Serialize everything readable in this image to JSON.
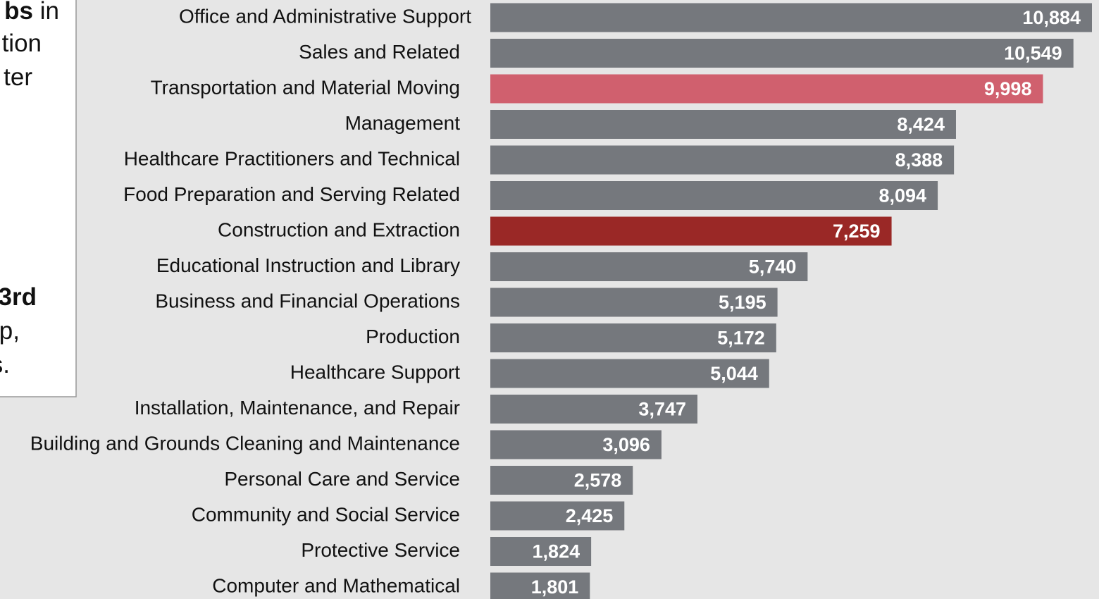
{
  "chart_data": {
    "type": "hbar",
    "categories": [
      "Office and Administrative Support",
      "Sales and Related",
      "Transportation and Material Moving",
      "Management",
      "Healthcare Practitioners and Technical",
      "Food Preparation and Serving Related",
      "Construction and Extraction",
      "Educational Instruction and Library",
      "Business and Financial Operations",
      "Production",
      "Healthcare Support",
      "Installation, Maintenance, and Repair",
      "Building and Grounds Cleaning and Maintenance",
      "Personal Care and Service",
      "Community and Social Service",
      "Protective Service",
      "Computer and Mathematical"
    ],
    "values": [
      10884,
      10549,
      9998,
      8424,
      8388,
      8094,
      7259,
      5740,
      5195,
      5172,
      5044,
      3747,
      3096,
      2578,
      2425,
      1824,
      1801
    ],
    "value_labels": [
      "10,884",
      "10,549",
      "9,998",
      "8,424",
      "8,388",
      "8,094",
      "7,259",
      "5,740",
      "5,195",
      "5,172",
      "5,044",
      "3,747",
      "3,096",
      "2,578",
      "2,425",
      "1,824",
      "1,801"
    ],
    "colors": [
      "#75787d",
      "#75787d",
      "#d0606e",
      "#75787d",
      "#75787d",
      "#75787d",
      "#9a2826",
      "#75787d",
      "#75787d",
      "#75787d",
      "#75787d",
      "#75787d",
      "#75787d",
      "#75787d",
      "#75787d",
      "#75787d",
      "#75787d"
    ]
  },
  "annotation": {
    "lines": [
      {
        "bold": "bs",
        "text": " in"
      },
      {
        "text": "tion"
      },
      {
        "text": "ter"
      },
      {
        "bold": "3rd"
      },
      {
        "text": "p,"
      },
      {
        "text": "s."
      }
    ]
  }
}
